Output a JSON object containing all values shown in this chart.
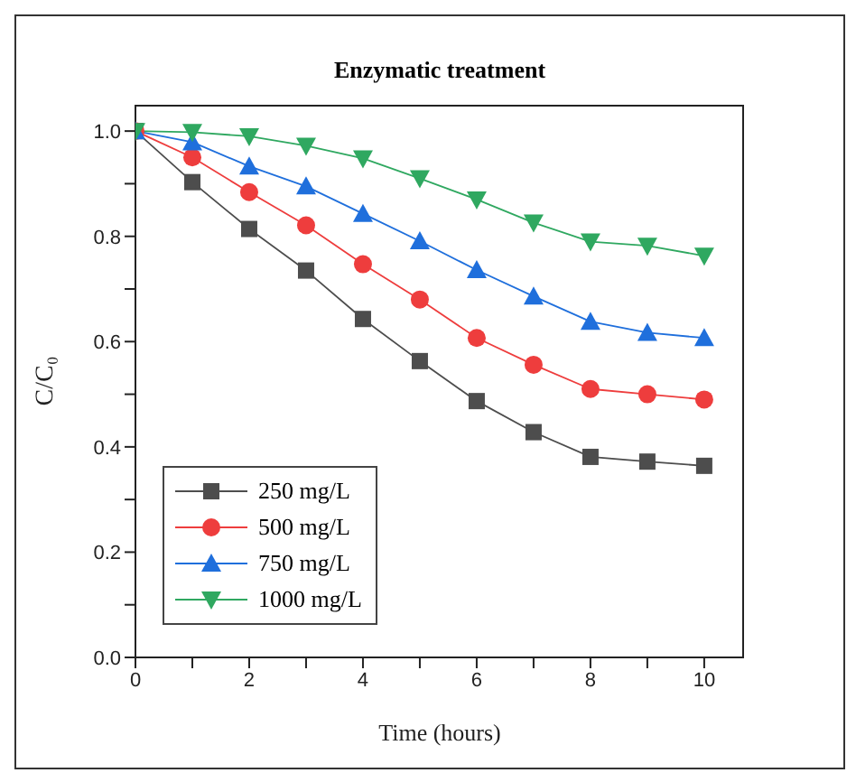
{
  "chart_data": {
    "type": "line",
    "title": "Enzymatic treatment",
    "xlabel": "Time (hours)",
    "ylabel": "C/C₀",
    "x": [
      0,
      1,
      2,
      3,
      4,
      5,
      6,
      7,
      8,
      9,
      10
    ],
    "series": [
      {
        "name": "250 mg/L",
        "color": "#4d4d4d",
        "marker": "square",
        "values": [
          1.0,
          0.903,
          0.814,
          0.735,
          0.643,
          0.563,
          0.487,
          0.428,
          0.381,
          0.372,
          0.364
        ]
      },
      {
        "name": "500 mg/L",
        "color": "#ee3d3d",
        "marker": "circle",
        "values": [
          1.0,
          0.95,
          0.884,
          0.821,
          0.747,
          0.68,
          0.607,
          0.556,
          0.51,
          0.5,
          0.49
        ]
      },
      {
        "name": "750 mg/L",
        "color": "#1f6fdc",
        "marker": "triangle",
        "values": [
          1.0,
          0.979,
          0.933,
          0.895,
          0.843,
          0.791,
          0.736,
          0.686,
          0.638,
          0.617,
          0.607
        ]
      },
      {
        "name": "1000 mg/L",
        "color": "#2fa860",
        "marker": "triangle-down",
        "values": [
          1.0,
          0.998,
          0.99,
          0.972,
          0.948,
          0.91,
          0.87,
          0.826,
          0.79,
          0.782,
          0.763
        ]
      }
    ],
    "xlim": [
      0,
      10.7
    ],
    "xticks": [
      0,
      {
        "value": 1,
        "label": null
      },
      2,
      {
        "value": 3,
        "label": null
      },
      4,
      {
        "value": 5,
        "label": null
      },
      6,
      {
        "value": 7,
        "label": null
      },
      8,
      {
        "value": 9,
        "label": null
      },
      10
    ],
    "ylim": [
      0,
      1.05
    ],
    "yticks": [
      {
        "value": 0,
        "label": "0.0"
      },
      {
        "value": 0.1,
        "label": null
      },
      {
        "value": 0.2,
        "label": "0.2"
      },
      {
        "value": 0.3,
        "label": null
      },
      {
        "value": 0.4,
        "label": "0.4"
      },
      {
        "value": 0.5,
        "label": null
      },
      {
        "value": 0.6,
        "label": "0.6"
      },
      {
        "value": 0.7,
        "label": null
      },
      {
        "value": 0.8,
        "label": "0.8"
      },
      {
        "value": 0.9,
        "label": null
      },
      {
        "value": 1.0,
        "label": "1.0"
      }
    ],
    "grid": false,
    "legend": "bottom left",
    "line_style": "solid"
  }
}
